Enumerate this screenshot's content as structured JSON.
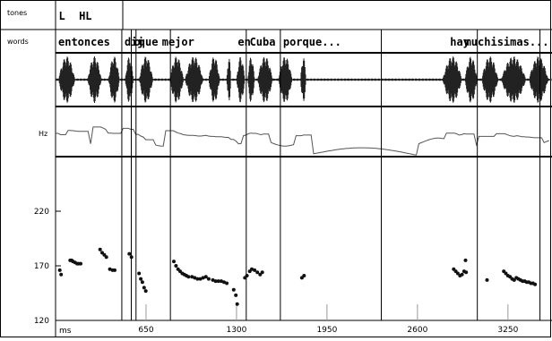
{
  "labels": {
    "tones": "tones",
    "words": "words",
    "hz": "Hz",
    "ms": "ms"
  },
  "tones_tier": [
    {
      "text": "L",
      "t": 10
    },
    {
      "text": "HL",
      "t": 155
    }
  ],
  "words_tier": [
    {
      "text": "entonces",
      "t": 0
    },
    {
      "text": "dij",
      "t": 476
    },
    {
      "text": "o",
      "t": 544
    },
    {
      "text": "que",
      "t": 578
    },
    {
      "text": "mejor",
      "t": 745
    },
    {
      "text": "en",
      "t": 1290
    },
    {
      "text": "Cuba",
      "t": 1375
    },
    {
      "text": "porque...",
      "t": 1615
    },
    {
      "text": "hay",
      "t": 2815
    },
    {
      "text": "muchisimas...",
      "t": 2920
    }
  ],
  "boundaries_ms": [
    476,
    544,
    578,
    825,
    1370,
    1615,
    2340,
    3030,
    3480
  ],
  "chart_data": {
    "type": "scatter",
    "xlabel": "ms",
    "ylabel": "",
    "x_ticks": [
      650,
      1300,
      1950,
      2600,
      3250
    ],
    "y_ticks": [
      120,
      170,
      220
    ],
    "xlim": [
      0,
      3560
    ],
    "ylim": [
      120,
      270
    ],
    "series": [
      {
        "values": [
          [
            30,
            166
          ],
          [
            40,
            162
          ],
          [
            105,
            175
          ],
          [
            115,
            175
          ],
          [
            125,
            174
          ],
          [
            140,
            173
          ],
          [
            155,
            172
          ],
          [
            165,
            172
          ],
          [
            180,
            172
          ],
          [
            320,
            185
          ],
          [
            335,
            182
          ],
          [
            350,
            180
          ],
          [
            365,
            178
          ],
          [
            390,
            167
          ],
          [
            410,
            166
          ],
          [
            425,
            166
          ],
          [
            530,
            181
          ],
          [
            545,
            178
          ],
          [
            600,
            163
          ],
          [
            612,
            158
          ],
          [
            624,
            155
          ],
          [
            636,
            150
          ],
          [
            648,
            147
          ],
          [
            850,
            174
          ],
          [
            865,
            170
          ],
          [
            880,
            167
          ],
          [
            895,
            165
          ],
          [
            910,
            163
          ],
          [
            925,
            162
          ],
          [
            940,
            161
          ],
          [
            955,
            160
          ],
          [
            980,
            160
          ],
          [
            1000,
            159
          ],
          [
            1020,
            158
          ],
          [
            1040,
            158
          ],
          [
            1060,
            159
          ],
          [
            1080,
            160
          ],
          [
            1100,
            158
          ],
          [
            1130,
            157
          ],
          [
            1150,
            156
          ],
          [
            1170,
            156
          ],
          [
            1190,
            156
          ],
          [
            1210,
            155
          ],
          [
            1230,
            154
          ],
          [
            1280,
            148
          ],
          [
            1295,
            143
          ],
          [
            1305,
            135
          ],
          [
            1360,
            159
          ],
          [
            1375,
            161
          ],
          [
            1395,
            165
          ],
          [
            1410,
            167
          ],
          [
            1430,
            166
          ],
          [
            1450,
            164
          ],
          [
            1470,
            162
          ],
          [
            1485,
            164
          ],
          [
            1770,
            159
          ],
          [
            1785,
            161
          ],
          [
            2860,
            167
          ],
          [
            2875,
            165
          ],
          [
            2890,
            163
          ],
          [
            2905,
            161
          ],
          [
            2920,
            162
          ],
          [
            2935,
            165
          ],
          [
            2945,
            175
          ],
          [
            2950,
            164
          ],
          [
            3100,
            157
          ],
          [
            3220,
            165
          ],
          [
            3235,
            163
          ],
          [
            3250,
            161
          ],
          [
            3265,
            160
          ],
          [
            3280,
            158
          ],
          [
            3295,
            157
          ],
          [
            3310,
            159
          ],
          [
            3325,
            158
          ],
          [
            3340,
            157
          ],
          [
            3355,
            156
          ],
          [
            3370,
            156
          ],
          [
            3385,
            155
          ],
          [
            3400,
            155
          ],
          [
            3415,
            154
          ],
          [
            3430,
            154
          ],
          [
            3445,
            153
          ]
        ]
      }
    ]
  }
}
